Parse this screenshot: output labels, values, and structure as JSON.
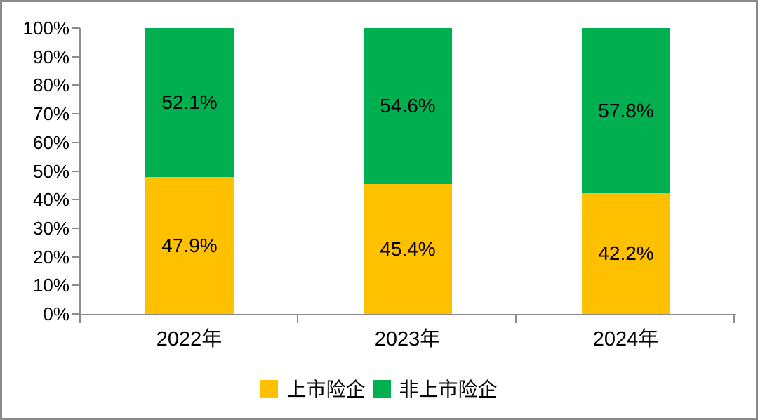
{
  "chart_data": {
    "type": "bar",
    "variant": "stacked-100-percent-column",
    "title": "",
    "categories": [
      "2022年",
      "2023年",
      "2024年"
    ],
    "series": [
      {
        "key": "listed-insurers",
        "name": "上市险企",
        "color": "#FFC000",
        "values": [
          47.9,
          45.4,
          42.2
        ],
        "data_labels": [
          "47.9%",
          "45.4%",
          "42.2%"
        ]
      },
      {
        "key": "non-listed-insurers",
        "name": "非上市险企",
        "color": "#00B050",
        "values": [
          52.1,
          54.6,
          57.8
        ],
        "data_labels": [
          "52.1%",
          "54.6%",
          "57.8%"
        ]
      }
    ],
    "y_axis": {
      "min": 0,
      "max": 100,
      "tick_step": 10,
      "tick_labels": [
        "0%",
        "10%",
        "20%",
        "30%",
        "40%",
        "50%",
        "60%",
        "70%",
        "80%",
        "90%",
        "100%"
      ]
    },
    "x_axis": {
      "labels": [
        "2022年",
        "2023年",
        "2024年"
      ]
    },
    "legend": {
      "position": "bottom",
      "items": [
        {
          "label": "上市险企",
          "color": "#FFC000"
        },
        {
          "label": "非上市险企",
          "color": "#00B050"
        }
      ]
    },
    "grid": false,
    "axis_color": "#8C8C8C",
    "text_color": "#000000",
    "background": "#FFFFFF",
    "frame_color": "#8A8A8A"
  }
}
